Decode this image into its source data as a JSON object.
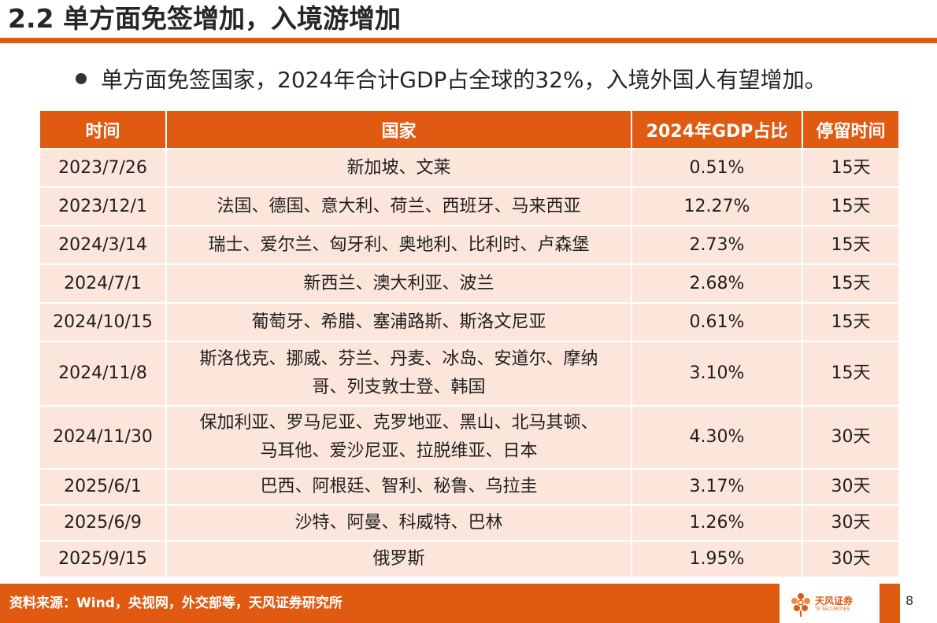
{
  "page": {
    "title": "2.2 单方面免签增加，入境游增加",
    "subtitle": "单方面免签国家，2024年合计GDP占全球的32%，入境外国人有望增加。",
    "page_number": "8"
  },
  "table": {
    "headers": [
      "时间",
      "国家",
      "2024年GDP占比",
      "停留时间"
    ],
    "rows": [
      {
        "date": "2023/7/26",
        "countries": [
          "新加坡、文莱"
        ],
        "gdp": "0.51%",
        "stay": "15天"
      },
      {
        "date": "2023/12/1",
        "countries": [
          "法国、德国、意大利、荷兰、西班牙、马来西亚"
        ],
        "gdp": "12.27%",
        "stay": "15天"
      },
      {
        "date": "2024/3/14",
        "countries": [
          "瑞士、爱尔兰、匈牙利、奥地利、比利时、卢森堡"
        ],
        "gdp": "2.73%",
        "stay": "15天"
      },
      {
        "date": "2024/7/1",
        "countries": [
          "新西兰、澳大利亚、波兰"
        ],
        "gdp": "2.68%",
        "stay": "15天"
      },
      {
        "date": "2024/10/15",
        "countries": [
          "葡萄牙、希腊、塞浦路斯、斯洛文尼亚"
        ],
        "gdp": "0.61%",
        "stay": "15天"
      },
      {
        "date": "2024/11/8",
        "countries": [
          "斯洛伐克、挪威、芬兰、丹麦、冰岛、安道尔、摩纳",
          "哥、列支敦士登、韩国"
        ],
        "gdp": "3.10%",
        "stay": "15天"
      },
      {
        "date": "2024/11/30",
        "countries": [
          "保加利亚、罗马尼亚、克罗地亚、黑山、北马其顿、",
          "马耳他、爱沙尼亚、拉脱维亚、日本"
        ],
        "gdp": "4.30%",
        "stay": "30天"
      },
      {
        "date": "2025/6/1",
        "countries": [
          "巴西、阿根廷、智利、秘鲁、乌拉圭"
        ],
        "gdp": "3.17%",
        "stay": "30天"
      },
      {
        "date": "2025/6/9",
        "countries": [
          "沙特、阿曼、科威特、巴林"
        ],
        "gdp": "1.26%",
        "stay": "30天"
      },
      {
        "date": "2025/9/15",
        "countries": [
          "俄罗斯"
        ],
        "gdp": "1.95%",
        "stay": "30天"
      }
    ]
  },
  "footer": {
    "source": "资料来源：Wind，央视网，外交部等，天风证券研究所",
    "logo_cn": "天风证券",
    "logo_en": "TF SECURITIES"
  },
  "colors": {
    "accent": "#e05a12",
    "row_bg": "#fce6dc"
  }
}
